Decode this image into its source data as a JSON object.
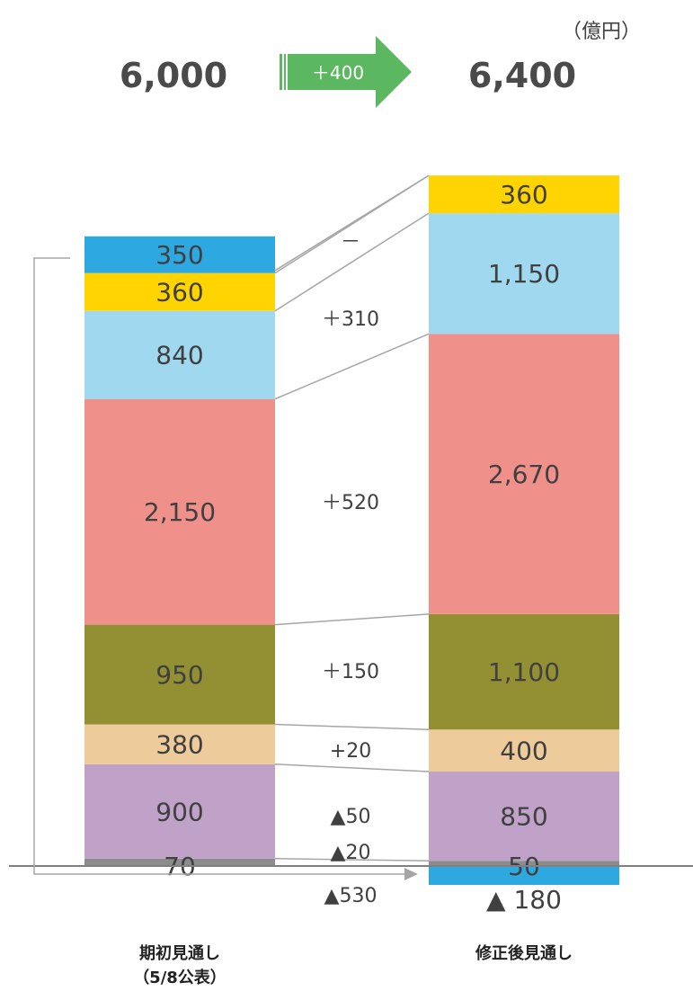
{
  "unit": "（億円）",
  "header": {
    "before_total": "6,000",
    "after_total": "6,400",
    "change": "＋400",
    "arrow_color": "#5cb860"
  },
  "categories": {
    "before": [
      "期初見通し",
      "（5/8公表）"
    ],
    "after": [
      "修正後見通し"
    ]
  },
  "chart_data": {
    "type": "bar",
    "stacked": true,
    "categories": [
      "期初見通し（5/8公表）",
      "修正後見通し"
    ],
    "series": [
      {
        "color": "#2ea8e0",
        "values": [
          350,
          -180
        ],
        "labels": [
          "350",
          "▲ 180"
        ]
      },
      {
        "color": "#ffd400",
        "values": [
          360,
          360
        ],
        "labels": [
          "360",
          "360"
        ]
      },
      {
        "color": "#a0d8ef",
        "values": [
          840,
          1150
        ],
        "labels": [
          "840",
          "1,150"
        ]
      },
      {
        "color": "#f0908a",
        "values": [
          2150,
          2670
        ],
        "labels": [
          "2,150",
          "2,670"
        ]
      },
      {
        "color": "#938f33",
        "values": [
          950,
          1100
        ],
        "labels": [
          "950",
          "1,100"
        ]
      },
      {
        "color": "#eecb9a",
        "values": [
          380,
          400
        ],
        "labels": [
          "380",
          "400"
        ]
      },
      {
        "color": "#c0a2c8",
        "values": [
          900,
          850
        ],
        "labels": [
          "900",
          "850"
        ]
      },
      {
        "color": "#8c8c8c",
        "values": [
          70,
          50
        ],
        "labels": [
          "70",
          "50"
        ]
      }
    ],
    "deltas": [
      "▲530",
      "－",
      "＋310",
      "＋520",
      "＋150",
      "+20",
      "▲50",
      "▲20"
    ],
    "totals": [
      "6,000",
      "6,400"
    ]
  }
}
